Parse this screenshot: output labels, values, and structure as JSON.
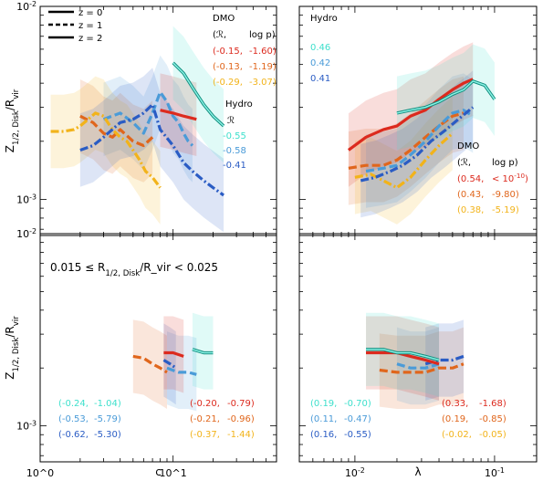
{
  "chart_data": {
    "type": "line",
    "layout": "2x2 panels",
    "legend_style": {
      "title": "",
      "entries": [
        {
          "label": "z = 0",
          "linestyle": "solid"
        },
        {
          "label": "z = 1",
          "linestyle": "dashed"
        },
        {
          "label": "z = 2",
          "linestyle": "dash-dot"
        }
      ]
    },
    "colors": {
      "dmo_z0": "#dc2a1e",
      "dmo_z1": "#e0661c",
      "dmo_z2": "#f2b31a",
      "hydro_z0": "#3ee0cc",
      "hydro_z1": "#4a9bd8",
      "hydro_z2": "#2a5cc4"
    },
    "ylabel": "Z_{1/2, Disk}/R_vir",
    "yscale": "log",
    "ylim": [
      0.00065,
      0.01
    ],
    "yticks": [
      "10^{-3}",
      "10^{-2}"
    ],
    "panels": [
      {
        "id": "top-left",
        "xlabel": "",
        "xscale": "log",
        "xlim": [
          1,
          60
        ],
        "xticks": [],
        "annotation": "",
        "dmo_title": "DMO",
        "dmo_header": [
          "(ℛ,",
          "log p)"
        ],
        "dmo_rows": [
          {
            "r": "(-0.15,",
            "p": "-1.60)",
            "color": "#dc2a1e"
          },
          {
            "r": "(-0.13,",
            "p": "-1.19)",
            "color": "#e0661c"
          },
          {
            "r": "(-0.29,",
            "p": "-3.07)",
            "color": "#f2b31a"
          }
        ],
        "hydro_title": "Hydro",
        "hydro_header": "ℛ",
        "hydro_rows": [
          {
            "v": "-0.55",
            "color": "#3ee0cc"
          },
          {
            "v": "-0.58",
            "color": "#4a9bd8"
          },
          {
            "v": "-0.41",
            "color": "#2a5cc4"
          }
        ],
        "series": [
          {
            "name": "Hydro z=1",
            "color": "#4a9bd8",
            "style": "dashed",
            "x": [
              3,
              4,
              5,
              6,
              7,
              8,
              9,
              10,
              11,
              12,
              13,
              14
            ],
            "y": [
              0.0026,
              0.0028,
              0.0025,
              0.0022,
              0.0028,
              0.0036,
              0.0032,
              0.0027,
              0.0025,
              0.0022,
              0.002,
              0.0019
            ]
          },
          {
            "name": "DMO z=1",
            "color": "#e0661c",
            "style": "dashed",
            "x": [
              2,
              2.5,
              3,
              3.5,
              4,
              5,
              6,
              7
            ],
            "y": [
              0.0027,
              0.0025,
              0.0022,
              0.0021,
              0.0023,
              0.002,
              0.0019,
              0.0021
            ]
          },
          {
            "name": "DMO z=2",
            "color": "#f2b31a",
            "style": "dashdot",
            "x": [
              1.2,
              1.5,
              1.8,
              2,
              2.3,
              2.6,
              3,
              3.5,
              4,
              4.5,
              5,
              5.6,
              6.2,
              7,
              8
            ],
            "y": [
              0.00225,
              0.00225,
              0.0023,
              0.0024,
              0.0026,
              0.0028,
              0.0027,
              0.0023,
              0.0021,
              0.002,
              0.0018,
              0.0016,
              0.0014,
              0.0013,
              0.00115
            ]
          },
          {
            "name": "Hydro z=2",
            "color": "#2a5cc4",
            "style": "dashdot",
            "x": [
              2,
              2.5,
              3,
              4,
              5,
              6,
              7,
              8,
              10,
              12,
              14,
              17,
              20,
              24
            ],
            "y": [
              0.0018,
              0.0019,
              0.0021,
              0.0025,
              0.0026,
              0.0028,
              0.0031,
              0.0023,
              0.0019,
              0.00155,
              0.0014,
              0.00125,
              0.00115,
              0.00105
            ]
          },
          {
            "name": "DMO z=0",
            "color": "#dc2a1e",
            "style": "solid",
            "x": [
              8,
              10,
              12,
              15
            ],
            "y": [
              0.0029,
              0.0028,
              0.0027,
              0.0026
            ]
          },
          {
            "name": "Hydro z=0",
            "color": "#3ee0cc",
            "style": "solid",
            "x": [
              10,
              12,
              14,
              17,
              20,
              24
            ],
            "y": [
              0.0051,
              0.0045,
              0.0038,
              0.0031,
              0.0027,
              0.0024
            ]
          }
        ]
      },
      {
        "id": "top-right",
        "xlabel": "",
        "xscale": "log",
        "xlim": [
          0.004,
          0.2
        ],
        "xticks": [],
        "annotation": "",
        "hydro_title": "Hydro",
        "hydro_rows": [
          {
            "v": "0.46",
            "color": "#3ee0cc"
          },
          {
            "v": "0.42",
            "color": "#4a9bd8"
          },
          {
            "v": "0.41",
            "color": "#2a5cc4"
          }
        ],
        "dmo_title": "DMO",
        "dmo_header": [
          "(ℛ,",
          "log p)"
        ],
        "dmo_rows": [
          {
            "r": "(0.54,",
            "p": "< 10^{-10})",
            "color": "#dc2a1e"
          },
          {
            "r": "(0.43,",
            "p": "-9.80)",
            "color": "#e0661c"
          },
          {
            "r": "(0.38,",
            "p": "-5.19)",
            "color": "#f2b31a"
          }
        ],
        "series": [
          {
            "name": "DMO z=1",
            "color": "#e0661c",
            "style": "dashed",
            "x": [
              0.009,
              0.012,
              0.016,
              0.02,
              0.025,
              0.032,
              0.04,
              0.05,
              0.06
            ],
            "y": [
              0.00145,
              0.0015,
              0.0015,
              0.0016,
              0.0018,
              0.0021,
              0.0024,
              0.0027,
              0.0028
            ]
          },
          {
            "name": "DMO z=2",
            "color": "#f2b31a",
            "style": "dashdot",
            "x": [
              0.01,
              0.013,
              0.016,
              0.02,
              0.025,
              0.032,
              0.04,
              0.05
            ],
            "y": [
              0.0013,
              0.00135,
              0.00125,
              0.00115,
              0.0013,
              0.0016,
              0.0019,
              0.0022
            ]
          },
          {
            "name": "Hydro z=1",
            "color": "#4a9bd8",
            "style": "dashed",
            "x": [
              0.012,
              0.016,
              0.02,
              0.025,
              0.032,
              0.04,
              0.05,
              0.06,
              0.07
            ],
            "y": [
              0.0014,
              0.00145,
              0.0015,
              0.0017,
              0.002,
              0.0024,
              0.0028,
              0.0029,
              0.0027
            ]
          },
          {
            "name": "Hydro z=2",
            "color": "#2a5cc4",
            "style": "dashdot",
            "x": [
              0.011,
              0.014,
              0.018,
              0.022,
              0.028,
              0.035,
              0.045,
              0.055,
              0.07
            ],
            "y": [
              0.00125,
              0.0013,
              0.0014,
              0.0015,
              0.0017,
              0.002,
              0.0023,
              0.0026,
              0.003
            ]
          },
          {
            "name": "DMO z=0",
            "color": "#dc2a1e",
            "style": "solid",
            "x": [
              0.009,
              0.012,
              0.016,
              0.02,
              0.025,
              0.032,
              0.04,
              0.05,
              0.06,
              0.07
            ],
            "y": [
              0.0018,
              0.0021,
              0.0023,
              0.0024,
              0.0027,
              0.0029,
              0.0033,
              0.0037,
              0.004,
              0.0042
            ]
          },
          {
            "name": "Hydro z=0",
            "color": "#3ee0cc",
            "style": "solid",
            "x": [
              0.02,
              0.025,
              0.032,
              0.04,
              0.05,
              0.06,
              0.07,
              0.085,
              0.1
            ],
            "y": [
              0.0028,
              0.0029,
              0.003,
              0.0032,
              0.0035,
              0.0037,
              0.0041,
              0.0039,
              0.0033
            ]
          }
        ]
      },
      {
        "id": "bottom-left",
        "xlabel": "c",
        "xscale": "log",
        "xlim": [
          1,
          60
        ],
        "xticks": [
          {
            "v": 1,
            "label": "10^0"
          },
          {
            "v": 10,
            "label": "10^1"
          }
        ],
        "annotation": "0.015 ≤ R_{1/2, Disk}/R_vir < 0.025",
        "left_rows": [
          {
            "r": "(-0.24,",
            "p": "-1.04)",
            "color": "#3ee0cc"
          },
          {
            "r": "(-0.53,",
            "p": "-5.79)",
            "color": "#4a9bd8"
          },
          {
            "r": "(-0.62,",
            "p": "-5.30)",
            "color": "#2a5cc4"
          }
        ],
        "right_rows": [
          {
            "r": "(-0.20,",
            "p": "-0.79)",
            "color": "#dc2a1e"
          },
          {
            "r": "(-0.21,",
            "p": "-0.96)",
            "color": "#e0661c"
          },
          {
            "r": "(-0.37,",
            "p": "-1.44)",
            "color": "#f2b31a"
          }
        ],
        "series": [
          {
            "name": "DMO z=1",
            "color": "#e0661c",
            "style": "dashed",
            "x": [
              5,
              6,
              7,
              8,
              9
            ],
            "y": [
              0.0023,
              0.00225,
              0.0021,
              0.002,
              0.0019
            ]
          },
          {
            "name": "Hydro z=1",
            "color": "#4a9bd8",
            "style": "dashed",
            "x": [
              9,
              11,
              13,
              15
            ],
            "y": [
              0.002,
              0.0019,
              0.0019,
              0.00185
            ]
          },
          {
            "name": "Hydro z=2",
            "color": "#2a5cc4",
            "style": "dashdot",
            "x": [
              8.5,
              9.5,
              10.5
            ],
            "y": [
              0.0022,
              0.0021,
              0.002
            ]
          },
          {
            "name": "DMO z=0",
            "color": "#dc2a1e",
            "style": "solid",
            "x": [
              8.5,
              10,
              12
            ],
            "y": [
              0.0024,
              0.0024,
              0.0023
            ]
          },
          {
            "name": "Hydro z=0",
            "color": "#3ee0cc",
            "style": "solid",
            "x": [
              14,
              17,
              20
            ],
            "y": [
              0.0025,
              0.0024,
              0.0024
            ]
          }
        ]
      },
      {
        "id": "bottom-right",
        "xlabel": "λ",
        "xscale": "log",
        "xlim": [
          0.004,
          0.2
        ],
        "xticks": [
          {
            "v": 0.01,
            "label": "10^{-2}"
          },
          {
            "v": 0.1,
            "label": "10^{-1}"
          }
        ],
        "annotation": "",
        "left_rows": [
          {
            "r": "(0.19,",
            "p": "-0.70)",
            "color": "#3ee0cc"
          },
          {
            "r": "(0.11,",
            "p": "-0.47)",
            "color": "#4a9bd8"
          },
          {
            "r": "(0.16,",
            "p": "-0.55)",
            "color": "#2a5cc4"
          }
        ],
        "right_rows": [
          {
            "r": "(0.33,",
            "p": "-1.68)",
            "color": "#dc2a1e"
          },
          {
            "r": "(0.19,",
            "p": "-0.85)",
            "color": "#e0661c"
          },
          {
            "r": "(-0.02,",
            "p": "-0.05)",
            "color": "#f2b31a"
          }
        ],
        "series": [
          {
            "name": "DMO z=1",
            "color": "#e0661c",
            "style": "dashed",
            "x": [
              0.015,
              0.02,
              0.025,
              0.032,
              0.04,
              0.05,
              0.06
            ],
            "y": [
              0.00195,
              0.0019,
              0.0019,
              0.0019,
              0.002,
              0.002,
              0.0021
            ]
          },
          {
            "name": "Hydro z=1",
            "color": "#4a9bd8",
            "style": "dashed",
            "x": [
              0.02,
              0.025,
              0.032,
              0.04
            ],
            "y": [
              0.0021,
              0.002,
              0.002,
              0.0021
            ]
          },
          {
            "name": "Hydro z=2",
            "color": "#2a5cc4",
            "style": "dashdot",
            "x": [
              0.032,
              0.04,
              0.05,
              0.06
            ],
            "y": [
              0.0021,
              0.0022,
              0.0022,
              0.0023
            ]
          },
          {
            "name": "DMO z=0",
            "color": "#dc2a1e",
            "style": "solid",
            "x": [
              0.012,
              0.016,
              0.02,
              0.025,
              0.032,
              0.04
            ],
            "y": [
              0.0024,
              0.0024,
              0.0024,
              0.0023,
              0.0022,
              0.0021
            ]
          },
          {
            "name": "Hydro z=0",
            "color": "#3ee0cc",
            "style": "solid",
            "x": [
              0.012,
              0.016,
              0.02,
              0.025,
              0.032,
              0.04
            ],
            "y": [
              0.0025,
              0.0025,
              0.0024,
              0.0024,
              0.0023,
              0.0022
            ]
          }
        ]
      }
    ]
  }
}
